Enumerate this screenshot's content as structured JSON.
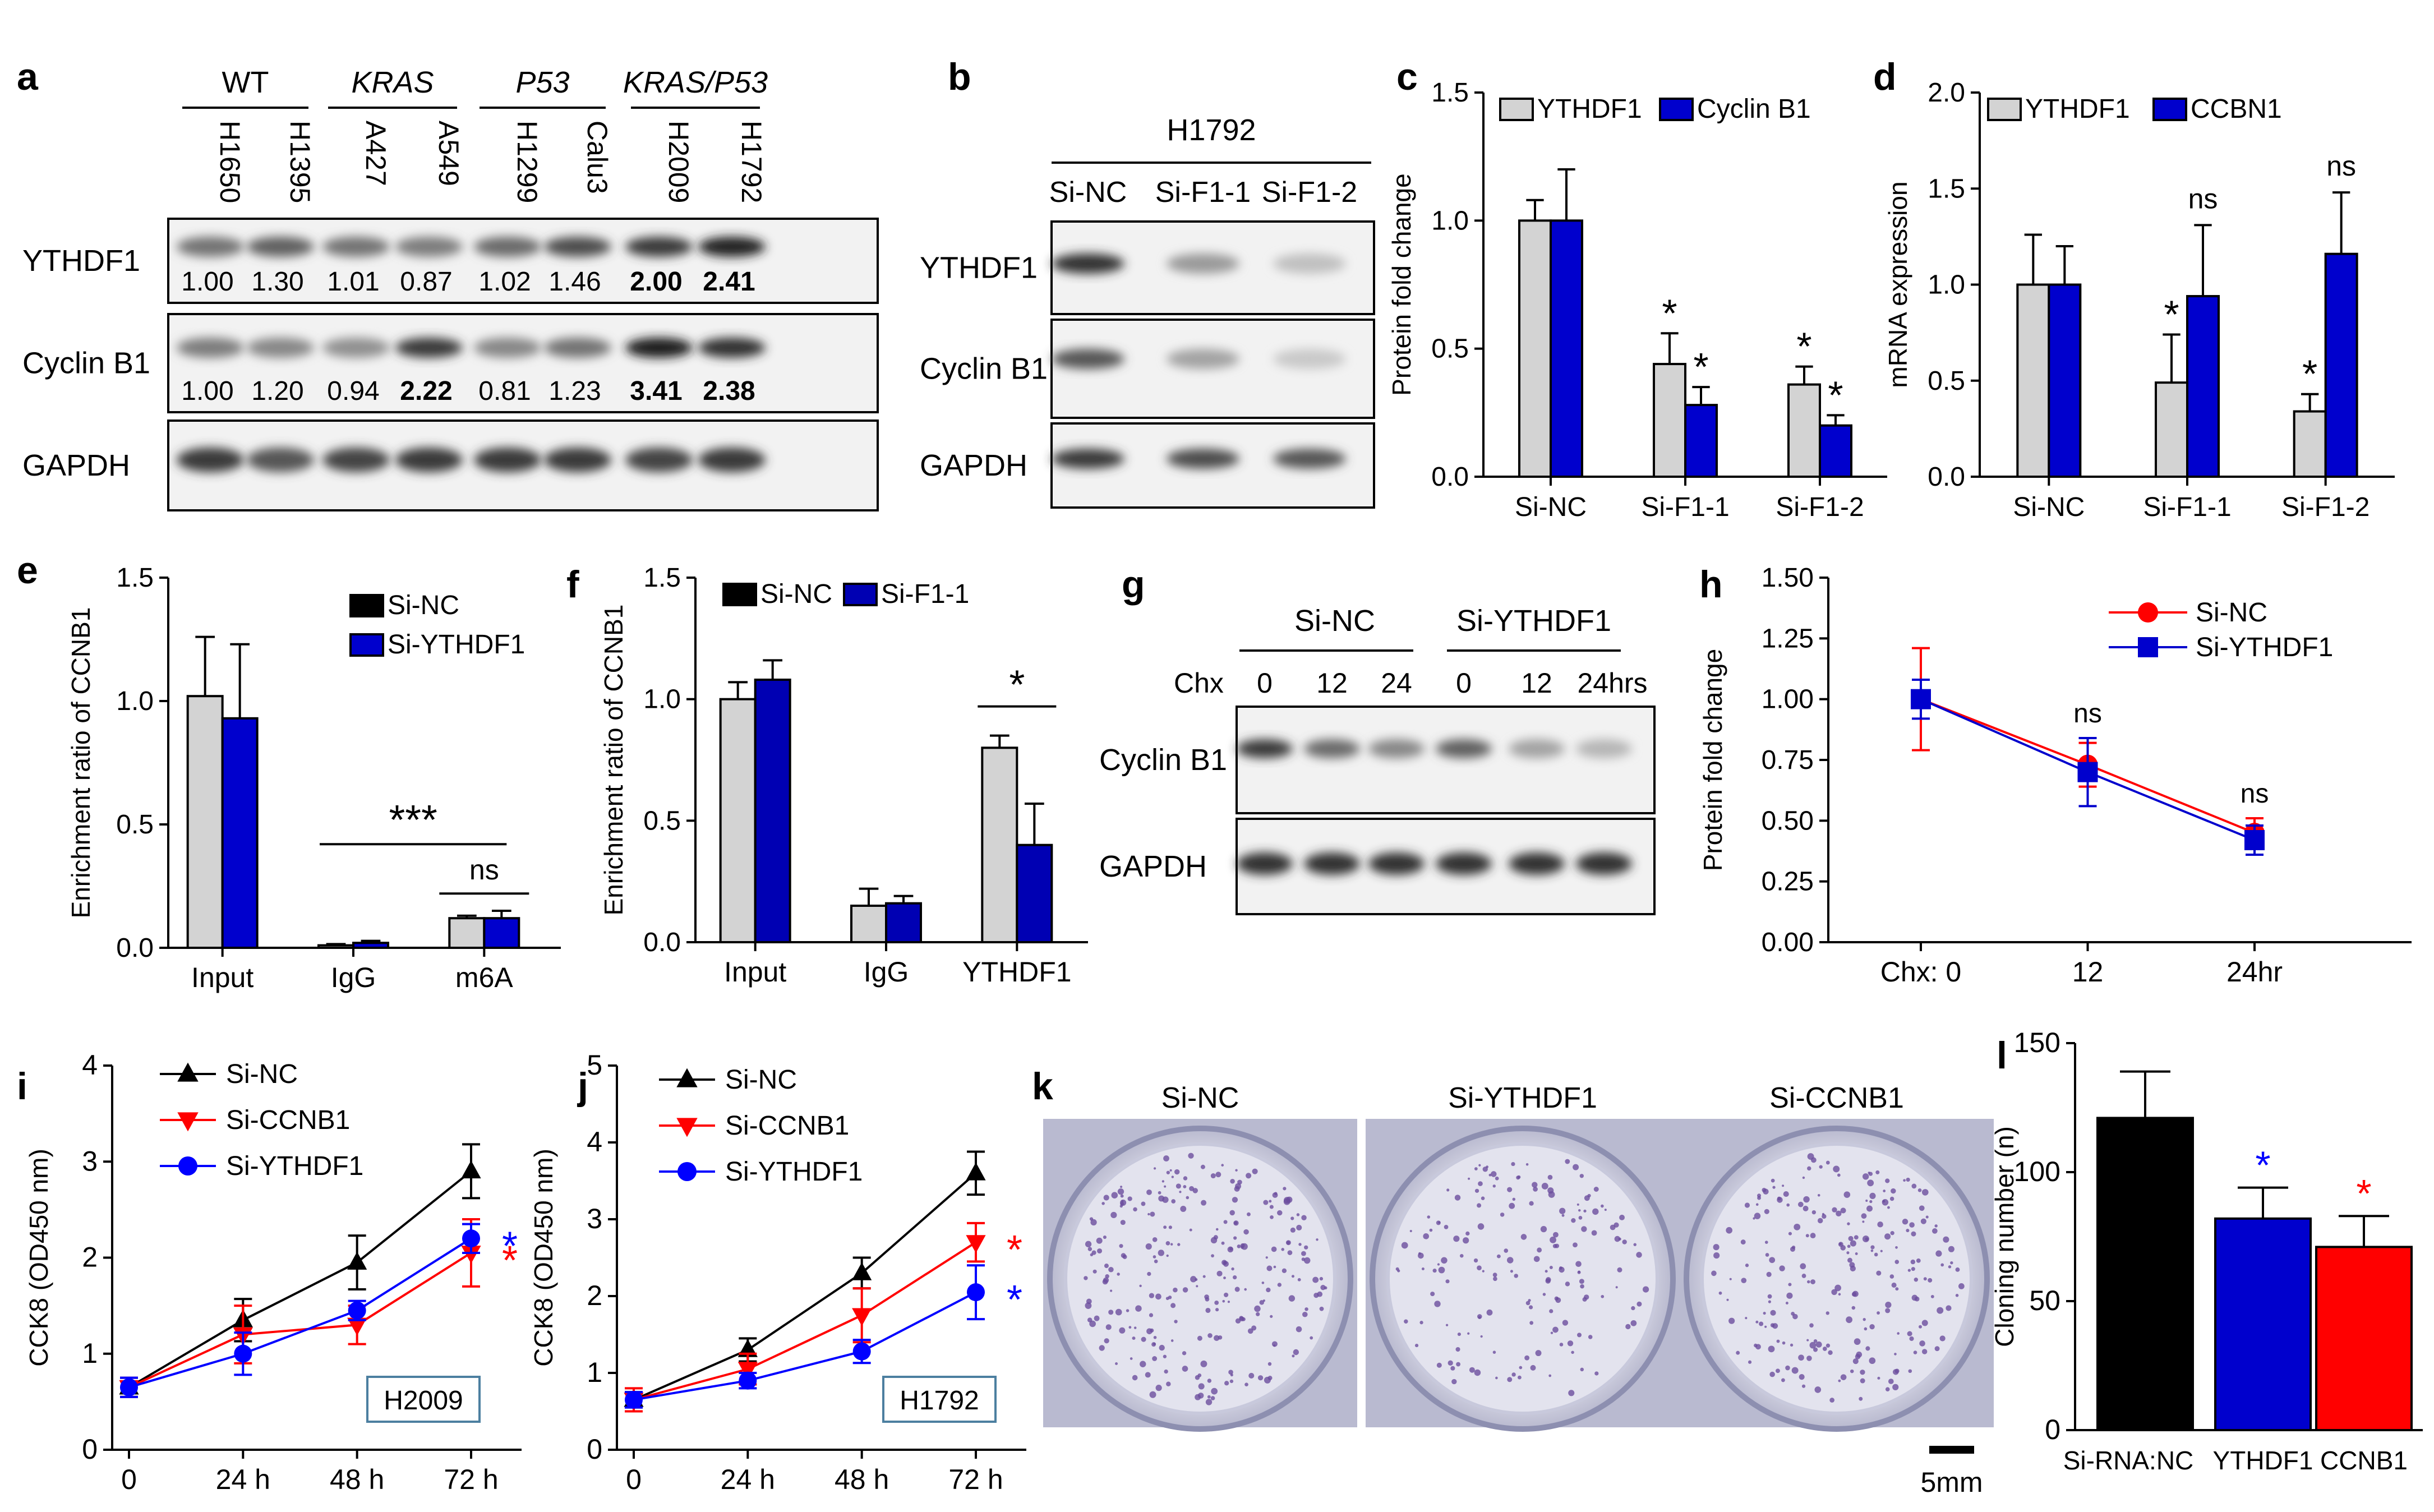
{
  "figure": {
    "panel_letters": [
      "a",
      "b",
      "c",
      "d",
      "e",
      "f",
      "g",
      "h",
      "i",
      "j",
      "k",
      "l"
    ],
    "scale_bar_label": "5mm"
  },
  "blots": {
    "a": {
      "groups": [
        {
          "label": "WT",
          "italic": false,
          "lanes": [
            "H1650",
            "H1395"
          ]
        },
        {
          "label": "KRAS",
          "italic": true,
          "lanes": [
            "A427",
            "A549"
          ]
        },
        {
          "label": "P53",
          "italic": true,
          "lanes": [
            "H1299",
            "Calu3"
          ]
        },
        {
          "label": "KRAS/P53",
          "italic": true,
          "lanes": [
            "H2009",
            "H1792"
          ]
        }
      ],
      "rows": [
        {
          "label": "YTHDF1",
          "quant": [
            "1.00",
            "1.30",
            "1.01",
            "0.87",
            "1.02",
            "1.46",
            "2.00",
            "2.41"
          ],
          "bold": [
            false,
            false,
            false,
            false,
            false,
            false,
            true,
            true
          ]
        },
        {
          "label": "Cyclin B1",
          "quant": [
            "1.00",
            "1.20",
            "0.94",
            "2.22",
            "0.81",
            "1.23",
            "3.41",
            "2.38"
          ],
          "bold": [
            false,
            false,
            false,
            true,
            false,
            false,
            true,
            true
          ]
        },
        {
          "label": "GAPDH",
          "quant": [],
          "bold": []
        }
      ]
    },
    "b": {
      "header": "H1792",
      "lanes": [
        "Si-NC",
        "Si-F1-1",
        "Si-F1-2"
      ],
      "rows": [
        "YTHDF1",
        "Cyclin B1",
        "GAPDH"
      ]
    },
    "g": {
      "groups": [
        "Si-NC",
        "Si-YTHDF1"
      ],
      "chx_label": "Chx",
      "times": [
        "0",
        "12",
        "24",
        "0",
        "12",
        "24hrs"
      ],
      "rows": [
        "Cyclin B1",
        "GAPDH"
      ]
    },
    "k": {
      "labels": [
        "Si-NC",
        "Si-YTHDF1",
        "Si-CCNB1"
      ]
    }
  },
  "colors": {
    "grey": "#d3d3d3",
    "blue": "#0000cd",
    "black": "#000000",
    "red": "#ff0000",
    "navy": "#0000b3"
  },
  "chart_data": [
    {
      "panel": "c",
      "type": "bar",
      "ylabel": "Protein fold change",
      "ylim": [
        0,
        1.5
      ],
      "yticks": [
        "0.0",
        "0.5",
        "1.0",
        "1.5"
      ],
      "categories": [
        "Si-NC",
        "Si-F1-1",
        "Si-F1-2"
      ],
      "series": [
        {
          "name": "YTHDF1",
          "color": "#d3d3d3",
          "values": [
            1.0,
            0.44,
            0.36
          ],
          "errors": [
            0.08,
            0.12,
            0.07
          ]
        },
        {
          "name": "Cyclin B1",
          "color": "#0000cd",
          "values": [
            1.0,
            0.28,
            0.2
          ],
          "errors": [
            0.2,
            0.07,
            0.04
          ]
        }
      ],
      "annotations": [
        {
          "category": 1,
          "series": 0,
          "text": "*"
        },
        {
          "category": 1,
          "series": 1,
          "text": "*"
        },
        {
          "category": 2,
          "series": 0,
          "text": "*"
        },
        {
          "category": 2,
          "series": 1,
          "text": "*"
        }
      ]
    },
    {
      "panel": "d",
      "type": "bar",
      "ylabel": "mRNA expression",
      "ylim": [
        0,
        2.0
      ],
      "yticks": [
        "0.0",
        "0.5",
        "1.0",
        "1.5",
        "2.0"
      ],
      "categories": [
        "Si-NC",
        "Si-F1-1",
        "Si-F1-2"
      ],
      "series": [
        {
          "name": "YTHDF1",
          "color": "#d3d3d3",
          "values": [
            1.0,
            0.49,
            0.34
          ],
          "errors": [
            0.26,
            0.25,
            0.09
          ]
        },
        {
          "name": "CCBN1",
          "color": "#0000cd",
          "values": [
            1.0,
            0.94,
            1.16
          ],
          "errors": [
            0.2,
            0.37,
            0.32
          ]
        }
      ],
      "annotations": [
        {
          "category": 1,
          "series": 0,
          "text": "*"
        },
        {
          "category": 1,
          "series": 1,
          "text": "ns"
        },
        {
          "category": 2,
          "series": 0,
          "text": "*"
        },
        {
          "category": 2,
          "series": 1,
          "text": "ns"
        }
      ]
    },
    {
      "panel": "e",
      "type": "bar",
      "ylabel": "Enrichment ratio of CCNB1",
      "ylim": [
        0,
        1.5
      ],
      "yticks": [
        "0.0",
        "0.5",
        "1.0",
        "1.5"
      ],
      "categories": [
        "Input",
        "IgG",
        "m6A"
      ],
      "series": [
        {
          "name": "Si-NC",
          "color": "#d3d3d3",
          "legend_color": "#000000",
          "values": [
            1.02,
            0.01,
            0.12
          ],
          "errors": [
            0.24,
            0.005,
            0.01
          ]
        },
        {
          "name": "Si-YTHDF1",
          "color": "#0000cd",
          "values": [
            0.93,
            0.02,
            0.12
          ],
          "errors": [
            0.3,
            0.008,
            0.03
          ]
        }
      ],
      "brackets": [
        {
          "from": 1,
          "to": 2,
          "text": "***"
        },
        {
          "from": 2,
          "to": 2,
          "text": "ns"
        }
      ]
    },
    {
      "panel": "f",
      "type": "bar",
      "ylabel": "Enrichment ratio of CCNB1",
      "ylim": [
        0,
        1.5
      ],
      "yticks": [
        "0.0",
        "0.5",
        "1.0",
        "1.5"
      ],
      "categories": [
        "Input",
        "IgG",
        "YTHDF1"
      ],
      "series": [
        {
          "name": "Si-NC",
          "color": "#d3d3d3",
          "legend_color": "#000000",
          "values": [
            1.0,
            0.15,
            0.8
          ],
          "errors": [
            0.07,
            0.07,
            0.05
          ]
        },
        {
          "name": "Si-F1-1",
          "color": "#0000b3",
          "values": [
            1.08,
            0.16,
            0.4
          ],
          "errors": [
            0.08,
            0.03,
            0.17
          ]
        }
      ],
      "brackets": [
        {
          "from": 2,
          "to": 2,
          "text": "*"
        }
      ]
    },
    {
      "panel": "h",
      "type": "line",
      "ylabel": "Protein fold change",
      "ylim": [
        0,
        1.5
      ],
      "yticks": [
        "0.00",
        "0.25",
        "0.50",
        "0.75",
        "1.00",
        "1.25",
        "1.50"
      ],
      "xticks": [
        "Chx: 0",
        "12",
        "24hr"
      ],
      "x": [
        0,
        12,
        24
      ],
      "series": [
        {
          "name": "Si-NC",
          "color": "#ff0000",
          "marker": "circle",
          "values": [
            1.0,
            0.73,
            0.45
          ],
          "errors": [
            0.21,
            0.09,
            0.06
          ]
        },
        {
          "name": "Si-YTHDF1",
          "color": "#0000cd",
          "marker": "square",
          "values": [
            1.0,
            0.7,
            0.42
          ],
          "errors": [
            0.08,
            0.14,
            0.06
          ]
        }
      ],
      "annotations": [
        {
          "x": 12,
          "text": "ns"
        },
        {
          "x": 24,
          "text": "ns"
        }
      ]
    },
    {
      "panel": "i",
      "type": "line",
      "ylabel": "CCK8 (OD450 nm)",
      "ylim": [
        0,
        4
      ],
      "yticks": [
        "0",
        "1",
        "2",
        "3",
        "4"
      ],
      "xticks": [
        "0",
        "24 h",
        "48 h",
        "72 h"
      ],
      "x": [
        0,
        24,
        48,
        72
      ],
      "series": [
        {
          "name": "Si-NC",
          "color": "#000000",
          "marker": "triangle-up",
          "values": [
            0.65,
            1.35,
            1.95,
            2.9
          ],
          "errors": [
            0.1,
            0.22,
            0.28,
            0.28
          ]
        },
        {
          "name": "Si-CCNB1",
          "color": "#ff0000",
          "marker": "triangle-down",
          "values": [
            0.65,
            1.2,
            1.3,
            2.05
          ],
          "errors": [
            0.1,
            0.3,
            0.2,
            0.35
          ]
        },
        {
          "name": "Si-YTHDF1",
          "color": "#0000ff",
          "marker": "circle",
          "values": [
            0.65,
            1.0,
            1.45,
            2.2
          ],
          "errors": [
            0.1,
            0.22,
            0.1,
            0.15
          ]
        }
      ],
      "box_label": "H2009",
      "stars": [
        {
          "series": 2,
          "text": "*"
        },
        {
          "series": 1,
          "text": "*"
        }
      ]
    },
    {
      "panel": "j",
      "type": "line",
      "ylabel": "CCK8 (OD450 nm)",
      "ylim": [
        0,
        5
      ],
      "yticks": [
        "0",
        "1",
        "2",
        "3",
        "4",
        "5"
      ],
      "xticks": [
        "0",
        "24 h",
        "48 h",
        "72 h"
      ],
      "x": [
        0,
        24,
        48,
        72
      ],
      "series": [
        {
          "name": "Si-NC",
          "color": "#000000",
          "marker": "triangle-up",
          "values": [
            0.65,
            1.3,
            2.3,
            3.6
          ],
          "errors": [
            0.1,
            0.15,
            0.2,
            0.28
          ]
        },
        {
          "name": "Si-CCNB1",
          "color": "#ff0000",
          "marker": "triangle-down",
          "values": [
            0.65,
            1.05,
            1.75,
            2.7
          ],
          "errors": [
            0.15,
            0.2,
            0.35,
            0.25
          ]
        },
        {
          "name": "Si-YTHDF1",
          "color": "#0000ff",
          "marker": "circle",
          "values": [
            0.65,
            0.9,
            1.28,
            2.05
          ],
          "errors": [
            0.1,
            0.1,
            0.15,
            0.35
          ]
        }
      ],
      "box_label": "H1792",
      "stars": [
        {
          "series": 1,
          "text": "*"
        },
        {
          "series": 2,
          "text": "*"
        }
      ]
    },
    {
      "panel": "l",
      "type": "bar",
      "ylabel": "Cloning number (n)",
      "ylim": [
        0,
        150
      ],
      "yticks": [
        "0",
        "50",
        "100",
        "150"
      ],
      "categories": [
        "Si-RNA:NC",
        "YTHDF1",
        "CCNB1"
      ],
      "series": [
        {
          "name": "",
          "colors": [
            "#000000",
            "#0000cd",
            "#ff0000"
          ],
          "values": [
            121,
            82,
            71
          ],
          "errors": [
            18,
            12,
            12
          ]
        }
      ],
      "annotations": [
        {
          "category": 1,
          "text": "*",
          "color": "#0000ff"
        },
        {
          "category": 2,
          "text": "*",
          "color": "#ff0000"
        }
      ]
    }
  ]
}
